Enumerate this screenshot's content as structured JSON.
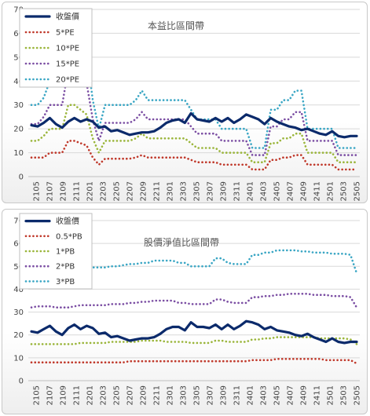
{
  "chart_data": [
    {
      "type": "line",
      "title": "本益比區間帶",
      "ylim": [
        0,
        70
      ],
      "yticks": [
        0,
        10,
        20,
        30,
        40,
        50,
        60,
        70
      ],
      "grid": "horizontal",
      "legend": "top-left",
      "x_tick_labels": [
        "2105",
        "2107",
        "2109",
        "2111",
        "2201",
        "2203",
        "2205",
        "2207",
        "2209",
        "2211",
        "2301",
        "2303",
        "2305",
        "2307",
        "2309",
        "2311",
        "2401",
        "2403",
        "2405",
        "2407",
        "2409",
        "2411",
        "2501",
        "2503",
        "2505"
      ],
      "colors": {
        "price": "#0b2a6b",
        "pe5": "#c0392b",
        "pe10": "#9ab53a",
        "pe15": "#7b4ea3",
        "pe20": "#3aa6c4"
      },
      "series": [
        {
          "name": "收盤價",
          "key": "price",
          "values": [
            21.5,
            21,
            22.5,
            24.5,
            22,
            20.5,
            23,
            24.5,
            23,
            24,
            23,
            20.5,
            21,
            19,
            19.5,
            18.5,
            17.5,
            18,
            18.5,
            18.5,
            19,
            20.5,
            22.5,
            23.5,
            24,
            22.5,
            26.5,
            24,
            23.5,
            23,
            24.5,
            23,
            24.5,
            22.5,
            24,
            26,
            25,
            24,
            22,
            24.5,
            23,
            22,
            21,
            20.5,
            19.5,
            20,
            19,
            18,
            17.5,
            19,
            17,
            16.5,
            17,
            17
          ]
        },
        {
          "name": "5*PE",
          "key": "pe5",
          "values": [
            8,
            8,
            8,
            10,
            10,
            10,
            15,
            15,
            14,
            13,
            8,
            5,
            7.5,
            7.5,
            7.5,
            7.5,
            7.5,
            8,
            9,
            8,
            8,
            8,
            8,
            8,
            8,
            8,
            7,
            6,
            6,
            6,
            6,
            5,
            5,
            5,
            5,
            5,
            3,
            3,
            3,
            7,
            7,
            8,
            8,
            9,
            9,
            5,
            5,
            5,
            5,
            5,
            3,
            3,
            3,
            3
          ]
        },
        {
          "name": "10*PE",
          "key": "pe10",
          "values": [
            15,
            15,
            17,
            20,
            20,
            20,
            30,
            30,
            28,
            26,
            16,
            10,
            15,
            15,
            15,
            15,
            15,
            16,
            18,
            16,
            16,
            16,
            16,
            16,
            16,
            16,
            14,
            12,
            12,
            12,
            12,
            10,
            10,
            10,
            10,
            10,
            6,
            6,
            6,
            14,
            14,
            16,
            16,
            18,
            18,
            10,
            10,
            10,
            10,
            10,
            6,
            6,
            6,
            6
          ]
        },
        {
          "name": "15*PE",
          "key": "pe15",
          "values": [
            22,
            22,
            25,
            30,
            30,
            30,
            45,
            45,
            42,
            39,
            24,
            15,
            22.5,
            22.5,
            22.5,
            22.5,
            22.5,
            24,
            27,
            24,
            24,
            24,
            24,
            24,
            24,
            24,
            21,
            18,
            18,
            18,
            18,
            15,
            15,
            15,
            15,
            15,
            9,
            9,
            9,
            21,
            21,
            24,
            24,
            27,
            27,
            15,
            15,
            15,
            15,
            15,
            9,
            9,
            9,
            9
          ]
        },
        {
          "name": "20*PE",
          "key": "pe20",
          "values": [
            30,
            30,
            33,
            40,
            40,
            40,
            60,
            60,
            56,
            52,
            32,
            20,
            30,
            30,
            30,
            30,
            30,
            32,
            36,
            32,
            32,
            32,
            32,
            32,
            32,
            32,
            28,
            24,
            24,
            24,
            24,
            20,
            20,
            20,
            20,
            20,
            12,
            12,
            12,
            28,
            28,
            32,
            32,
            36,
            36,
            20,
            20,
            20,
            20,
            20,
            12,
            12,
            12,
            12
          ]
        }
      ]
    },
    {
      "type": "line",
      "title": "股價淨值比區間帶",
      "ylim": [
        0,
        70
      ],
      "yticks": [
        0,
        10,
        20,
        30,
        40,
        50,
        60,
        70
      ],
      "grid": "horizontal",
      "legend": "top-left",
      "x_tick_labels": [
        "2105",
        "2107",
        "2109",
        "2111",
        "2201",
        "2203",
        "2205",
        "2207",
        "2209",
        "2211",
        "2301",
        "2303",
        "2305",
        "2307",
        "2309",
        "2311",
        "2401",
        "2403",
        "2405",
        "2407",
        "2409",
        "2411",
        "2501",
        "2503",
        "2505"
      ],
      "colors": {
        "price": "#0b2a6b",
        "pb05": "#c0392b",
        "pb1": "#9ab53a",
        "pb2": "#7b4ea3",
        "pb3": "#3aa6c4"
      },
      "series": [
        {
          "name": "收盤價",
          "key": "price",
          "values": [
            21.5,
            21,
            22.5,
            24,
            21.5,
            20,
            23,
            24.5,
            22.5,
            24,
            23,
            20.5,
            21,
            19,
            19.5,
            18.5,
            17.5,
            18,
            18.5,
            18.5,
            19,
            20.5,
            22.5,
            23.5,
            23.5,
            22,
            25.5,
            23.5,
            23.5,
            23,
            24.5,
            22.5,
            24.5,
            22.5,
            24,
            26,
            25.5,
            24.5,
            22.5,
            23.5,
            22,
            21.5,
            21,
            20,
            19.5,
            20.5,
            19,
            18,
            17,
            18.5,
            17,
            16.5,
            17,
            17
          ]
        },
        {
          "name": "0.5*PB",
          "key": "pb05",
          "values": [
            8,
            8,
            8,
            8,
            8,
            8,
            8,
            8,
            8,
            8,
            8,
            8,
            8,
            8,
            8,
            8,
            8.5,
            8.5,
            8.5,
            8.5,
            8.5,
            8.5,
            8.5,
            8.5,
            8.5,
            8.5,
            8.5,
            8.5,
            8.5,
            8.5,
            8.5,
            8.5,
            8.5,
            8.5,
            8.5,
            8.5,
            9,
            9,
            9,
            9,
            9.5,
            9.5,
            9.5,
            9.5,
            9.5,
            9.5,
            9.5,
            9.5,
            9,
            9,
            9,
            9,
            9,
            7.5
          ]
        },
        {
          "name": "1*PB",
          "key": "pb1",
          "values": [
            16,
            16,
            16,
            16,
            16,
            16,
            16,
            16,
            16.5,
            16.5,
            16.5,
            16.5,
            16.5,
            17,
            17,
            17,
            17,
            17,
            17.5,
            17.5,
            17.5,
            17.5,
            17,
            17,
            17,
            17,
            16.5,
            16.5,
            16.5,
            16.5,
            17.5,
            17.5,
            17,
            17,
            17,
            17,
            18,
            18,
            18.5,
            18.5,
            19,
            19,
            19,
            19,
            19,
            19,
            19,
            18.5,
            18.5,
            18.5,
            18.5,
            18.5,
            18,
            16
          ]
        },
        {
          "name": "2*PB",
          "key": "pb2",
          "values": [
            32,
            32.5,
            32.5,
            32.5,
            32,
            32,
            32,
            32.5,
            33,
            33,
            33,
            33,
            33,
            33.5,
            33.5,
            33.5,
            34,
            34,
            34.5,
            34.5,
            35,
            35,
            35,
            35,
            34,
            34,
            33.5,
            33.5,
            33.5,
            33.5,
            35.5,
            35.5,
            34.5,
            34,
            34,
            34,
            36.5,
            36.5,
            37,
            37,
            37.5,
            37.5,
            38,
            38,
            38,
            38,
            37.5,
            37.5,
            37.5,
            37,
            37,
            37,
            36.5,
            32
          ]
        },
        {
          "name": "3*PB",
          "key": "pb3",
          "values": [
            48,
            48.5,
            49,
            49,
            48.5,
            48.5,
            48.5,
            49,
            49.5,
            49.5,
            49.5,
            49.5,
            49.5,
            50,
            50,
            50.5,
            51,
            51,
            51.5,
            51.5,
            52.5,
            52.5,
            52.5,
            52.5,
            51.5,
            51.5,
            50,
            50,
            50,
            50,
            53.5,
            53.5,
            51.5,
            51,
            51,
            51,
            55,
            55,
            56,
            56,
            57,
            57,
            57,
            57,
            56.5,
            56.5,
            56,
            56,
            56,
            55.5,
            55.5,
            55.5,
            55,
            47
          ]
        }
      ]
    }
  ]
}
